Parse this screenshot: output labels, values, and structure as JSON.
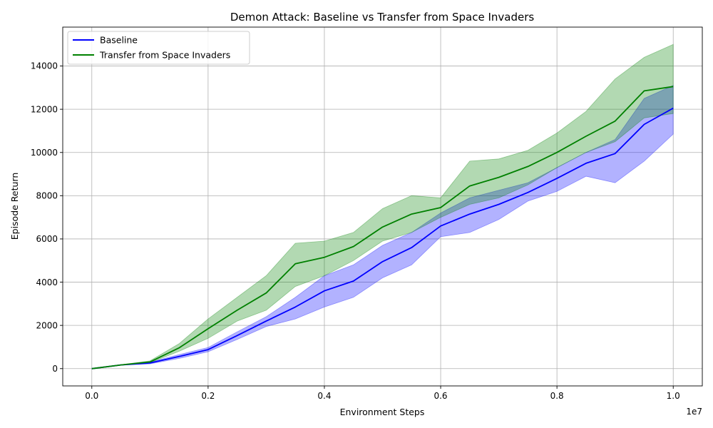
{
  "chart_data": {
    "type": "line",
    "title": "Demon Attack: Baseline vs Transfer from Space Invaders",
    "xlabel": "Environment Steps",
    "ylabel": "Episode Return",
    "x_offset_label": "1e7",
    "xlim": [
      -0.05,
      1.05
    ],
    "ylim": [
      -800,
      15800
    ],
    "xticks": [
      0.0,
      0.2,
      0.4,
      0.6,
      0.8,
      1.0
    ],
    "xtick_labels": [
      "0.0",
      "0.2",
      "0.4",
      "0.6",
      "0.8",
      "1.0"
    ],
    "yticks": [
      0,
      2000,
      4000,
      6000,
      8000,
      10000,
      12000,
      14000
    ],
    "ytick_labels": [
      "0",
      "2000",
      "4000",
      "6000",
      "8000",
      "10000",
      "12000",
      "14000"
    ],
    "grid": true,
    "legend": "top-left",
    "x": [
      0.0,
      0.05,
      0.1,
      0.15,
      0.2,
      0.25,
      0.3,
      0.35,
      0.4,
      0.45,
      0.5,
      0.55,
      0.6,
      0.65,
      0.7,
      0.75,
      0.8,
      0.85,
      0.9,
      0.95,
      1.0
    ],
    "series": [
      {
        "name": "Baseline",
        "color": "#0000ff",
        "fill_color": "#0000ff",
        "values": [
          0,
          170,
          260,
          560,
          880,
          1530,
          2200,
          2850,
          3600,
          4050,
          4950,
          5600,
          6600,
          7150,
          7600,
          8150,
          8800,
          9500,
          9950,
          11300,
          12050
        ],
        "lower": [
          0,
          160,
          220,
          470,
          780,
          1350,
          1950,
          2300,
          2850,
          3300,
          4200,
          4800,
          6100,
          6300,
          6900,
          7750,
          8200,
          8900,
          8600,
          9600,
          10850
        ],
        "upper": [
          0,
          180,
          300,
          650,
          980,
          1700,
          2400,
          3300,
          4300,
          4800,
          5700,
          6300,
          7200,
          7900,
          8250,
          8600,
          9300,
          10000,
          10600,
          12500,
          13100
        ]
      },
      {
        "name": "Transfer from Space Invaders",
        "color": "#008000",
        "fill_color": "#008000",
        "values": [
          0,
          170,
          310,
          960,
          1850,
          2700,
          3500,
          4850,
          5150,
          5650,
          6550,
          7150,
          7450,
          8450,
          8850,
          9350,
          10000,
          10750,
          11450,
          12850,
          13050
        ],
        "lower": [
          0,
          160,
          270,
          800,
          1400,
          2200,
          2700,
          3800,
          4300,
          5000,
          5900,
          6300,
          7000,
          7600,
          7900,
          8500,
          9300,
          10000,
          10500,
          11600,
          11800
        ],
        "upper": [
          0,
          180,
          360,
          1150,
          2300,
          3300,
          4300,
          5800,
          5900,
          6300,
          7400,
          8000,
          7900,
          9600,
          9700,
          10100,
          10900,
          11900,
          13400,
          14400,
          15000
        ]
      }
    ]
  }
}
